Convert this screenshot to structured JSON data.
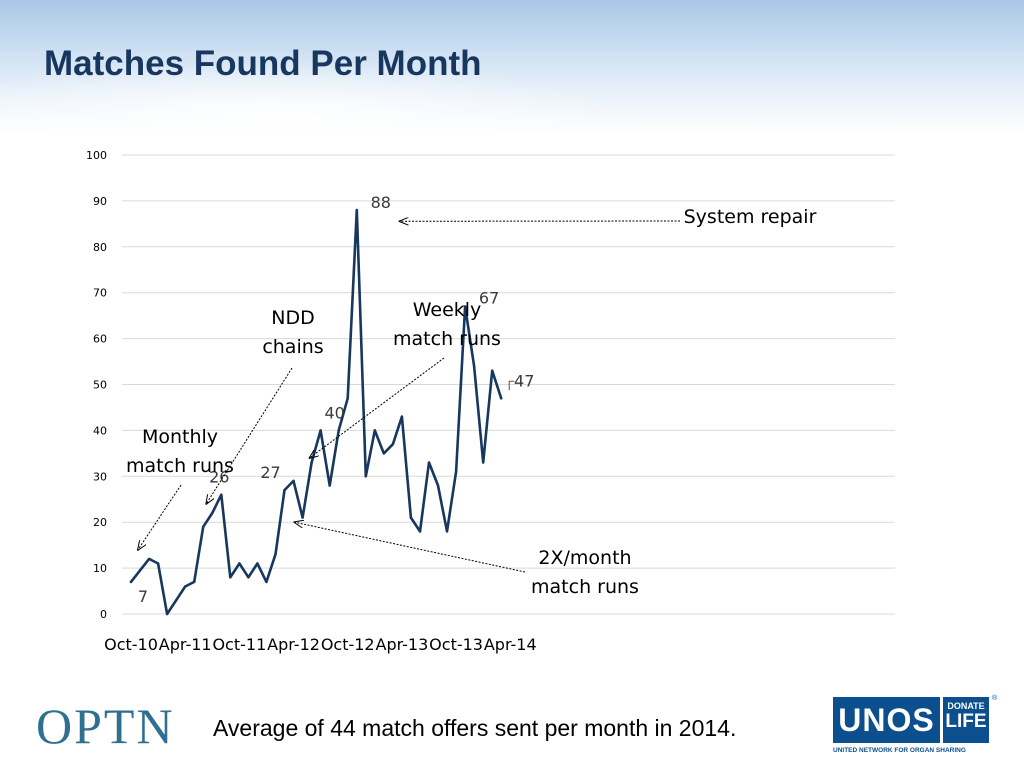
{
  "slide": {
    "title": "Matches Found Per Month",
    "footer": "Average of 44 match offers sent per month in 2014."
  },
  "logos": {
    "optn": "OPTN",
    "unos": "UNOS",
    "donate": "DONATE",
    "life": "LIFE",
    "unos_subtitle": "UNITED NETWORK FOR ORGAN SHARING"
  },
  "chart_data": {
    "type": "line",
    "title": "",
    "xlabel": "",
    "ylabel": "",
    "ylim": [
      0,
      100
    ],
    "yticks": [
      0,
      10,
      20,
      30,
      40,
      50,
      60,
      70,
      80,
      90,
      100
    ],
    "xtick_labels": [
      "Oct-10",
      "Apr-11",
      "Oct-11",
      "Apr-12",
      "Oct-12",
      "Apr-13",
      "Oct-13",
      "Apr-14"
    ],
    "grid": "horizontal",
    "line_color": "#17375e",
    "series": [
      {
        "values": [
          7,
          9.5,
          12,
          11,
          0,
          3,
          6,
          7,
          19,
          22,
          26,
          8,
          11,
          8,
          11,
          7,
          13,
          27,
          29,
          21,
          33,
          40,
          28,
          40,
          47,
          88,
          30,
          40,
          35,
          37,
          43,
          21,
          18,
          33,
          28,
          18,
          31,
          67,
          54,
          33,
          53,
          47
        ]
      }
    ],
    "data_labels": [
      {
        "index": 0,
        "text": "7"
      },
      {
        "index": 10,
        "text": "26"
      },
      {
        "index": 17,
        "text": "27"
      },
      {
        "index": 23,
        "text": "40"
      },
      {
        "index": 25,
        "text": "88"
      },
      {
        "index": 37,
        "text": "67"
      },
      {
        "index": 41,
        "text": "47"
      }
    ],
    "annotations": [
      {
        "lines": [
          "Monthly",
          "match runs"
        ],
        "target_index": 0,
        "target_value": 14
      },
      {
        "lines": [
          "NDD",
          "chains"
        ],
        "target_index": 8,
        "target_value": 24
      },
      {
        "lines": [
          "Weekly",
          "match runs"
        ],
        "target_index": 20,
        "target_value": 34
      },
      {
        "lines": [
          "2X/month",
          "match runs"
        ],
        "target_index": 17,
        "target_value": 20
      },
      {
        "lines": [
          "System repair"
        ],
        "target_index": 25,
        "target_value": 86
      }
    ]
  }
}
